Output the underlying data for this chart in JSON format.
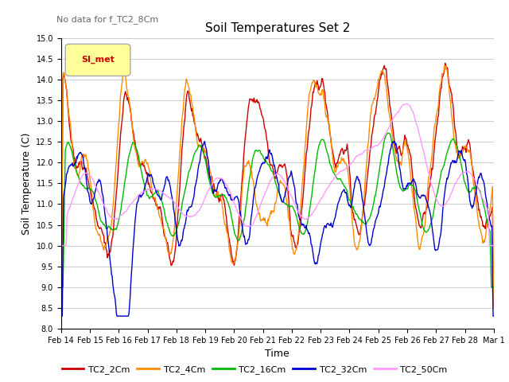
{
  "title": "Soil Temperatures Set 2",
  "subtitle": "No data for f_TC2_8Cm",
  "xlabel": "Time",
  "ylabel": "Soil Temperature (C)",
  "ylim": [
    8.0,
    15.0
  ],
  "yticks": [
    8.0,
    8.5,
    9.0,
    9.5,
    10.0,
    10.5,
    11.0,
    11.5,
    12.0,
    12.5,
    13.0,
    13.5,
    14.0,
    14.5,
    15.0
  ],
  "xtick_labels": [
    "Feb 14",
    "Feb 15",
    "Feb 16",
    "Feb 17",
    "Feb 18",
    "Feb 19",
    "Feb 20",
    "Feb 21",
    "Feb 22",
    "Feb 23",
    "Feb 24",
    "Feb 25",
    "Feb 26",
    "Feb 27",
    "Feb 28",
    "Mar 1"
  ],
  "legend_label": "SI_met",
  "series_colors": [
    "#cc0000",
    "#ff8c00",
    "#00bb00",
    "#0000cc",
    "#ff99ff"
  ],
  "series_names": [
    "TC2_2Cm",
    "TC2_4Cm",
    "TC2_16Cm",
    "TC2_32Cm",
    "TC2_50Cm"
  ],
  "background_color": "#ffffff",
  "grid_color": "#cccccc",
  "figwidth": 6.4,
  "figheight": 4.8,
  "dpi": 100
}
